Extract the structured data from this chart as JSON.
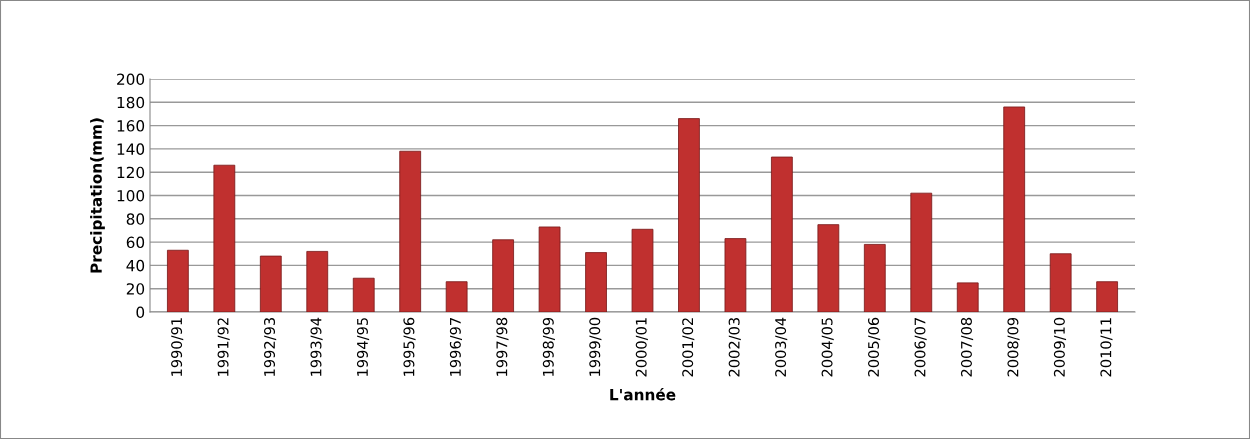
{
  "chart_data": {
    "type": "bar",
    "xlabel": "L'année",
    "ylabel": "Precipitation(mm)",
    "categories": [
      "1990/91",
      "1991/92",
      "1992/93",
      "1993/94",
      "1994/95",
      "1995/96",
      "1996/97",
      "1997/98",
      "1998/99",
      "1999/00",
      "2000/01",
      "2001/02",
      "2002/03",
      "2003/04",
      "2004/05",
      "2005/06",
      "2006/07",
      "2007/08",
      "2008/09",
      "2009/10",
      "2010/11"
    ],
    "values": [
      53,
      126,
      48,
      52,
      29,
      138,
      26,
      62,
      73,
      51,
      71,
      166,
      63,
      133,
      75,
      58,
      102,
      25,
      176,
      50,
      26
    ],
    "color": "#c0302f",
    "ylim": [
      0,
      200
    ],
    "yticks": [
      0,
      20,
      40,
      60,
      80,
      100,
      120,
      140,
      160,
      180,
      200
    ],
    "grid": "y"
  }
}
